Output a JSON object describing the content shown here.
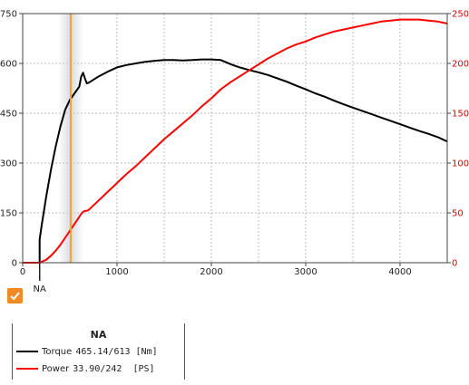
{
  "chart_data": {
    "type": "line",
    "title": "",
    "xlabel": "",
    "ylabel": "",
    "xlim": [
      0,
      4500
    ],
    "ylim_left": [
      0,
      750
    ],
    "ylim_right": [
      0,
      250
    ],
    "grid": true,
    "x_ticks": [
      "0",
      "1000",
      "2000",
      "3000",
      "4000"
    ],
    "x_tick_values": [
      0,
      1000,
      2000,
      3000,
      4000
    ],
    "y_left_ticks": [
      "0",
      "150",
      "300",
      "450",
      "600",
      "750"
    ],
    "y_left_tick_values": [
      0,
      150,
      300,
      450,
      600,
      750
    ],
    "y_right_ticks": [
      "0",
      "50",
      "100",
      "150",
      "200",
      "250"
    ],
    "y_right_tick_values": [
      0,
      50,
      100,
      150,
      200,
      250
    ],
    "cursor_x": 510,
    "marker_label": "NA",
    "marker_x": 180,
    "series": [
      {
        "name": "Torque",
        "axis": "left",
        "color": "#000000",
        "x": [
          180,
          180,
          200,
          250,
          300,
          350,
          400,
          450,
          500,
          550,
          600,
          620,
          640,
          660,
          680,
          700,
          800,
          900,
          1000,
          1100,
          1200,
          1300,
          1400,
          1500,
          1600,
          1700,
          1800,
          1900,
          2000,
          2100,
          2200,
          2300,
          2400,
          2500,
          2600,
          2700,
          2800,
          2900,
          3000,
          3100,
          3200,
          3300,
          3400,
          3500,
          3600,
          3700,
          3800,
          3900,
          4000,
          4100,
          4200,
          4300,
          4400,
          4500
        ],
        "y": [
          0,
          70,
          110,
          200,
          280,
          350,
          410,
          460,
          490,
          510,
          530,
          560,
          572,
          555,
          540,
          542,
          560,
          575,
          588,
          595,
          600,
          605,
          608,
          610,
          610,
          609,
          610,
          612,
          612,
          610,
          598,
          588,
          580,
          573,
          565,
          555,
          545,
          533,
          522,
          510,
          500,
          488,
          477,
          467,
          457,
          447,
          437,
          427,
          417,
          407,
          397,
          388,
          378,
          365
        ]
      },
      {
        "name": "Power",
        "axis": "right",
        "color": "#ff0000",
        "x": [
          0,
          180,
          250,
          300,
          350,
          400,
          450,
          500,
          550,
          600,
          620,
          640,
          660,
          680,
          700,
          800,
          900,
          1000,
          1100,
          1200,
          1300,
          1400,
          1500,
          1600,
          1700,
          1800,
          1900,
          2000,
          2100,
          2200,
          2300,
          2400,
          2500,
          2600,
          2700,
          2800,
          2900,
          3000,
          3100,
          3200,
          3300,
          3400,
          3500,
          3600,
          3700,
          3800,
          3900,
          4000,
          4100,
          4200,
          4300,
          4400,
          4500
        ],
        "y": [
          0,
          0,
          3,
          7,
          12,
          18,
          25,
          32,
          39,
          46,
          49,
          51,
          52,
          52,
          53,
          62,
          71,
          80,
          89,
          97,
          106,
          115,
          124,
          132,
          140,
          148,
          157,
          165,
          174,
          181,
          187,
          193,
          199,
          205,
          210,
          215,
          219,
          222,
          226,
          229,
          232,
          234,
          236,
          238,
          240,
          242,
          243,
          244,
          244,
          244,
          243,
          242,
          240
        ]
      }
    ]
  },
  "legend": {
    "title": "NA",
    "items": [
      {
        "label": "Torque",
        "value": "465.14/613 [Nm]",
        "color": "#000000"
      },
      {
        "label": "Power",
        "value": "33.90/242  [PS]",
        "color": "#ff0000"
      }
    ]
  },
  "checkbox": {
    "checked": true,
    "color": "#f08a24"
  }
}
